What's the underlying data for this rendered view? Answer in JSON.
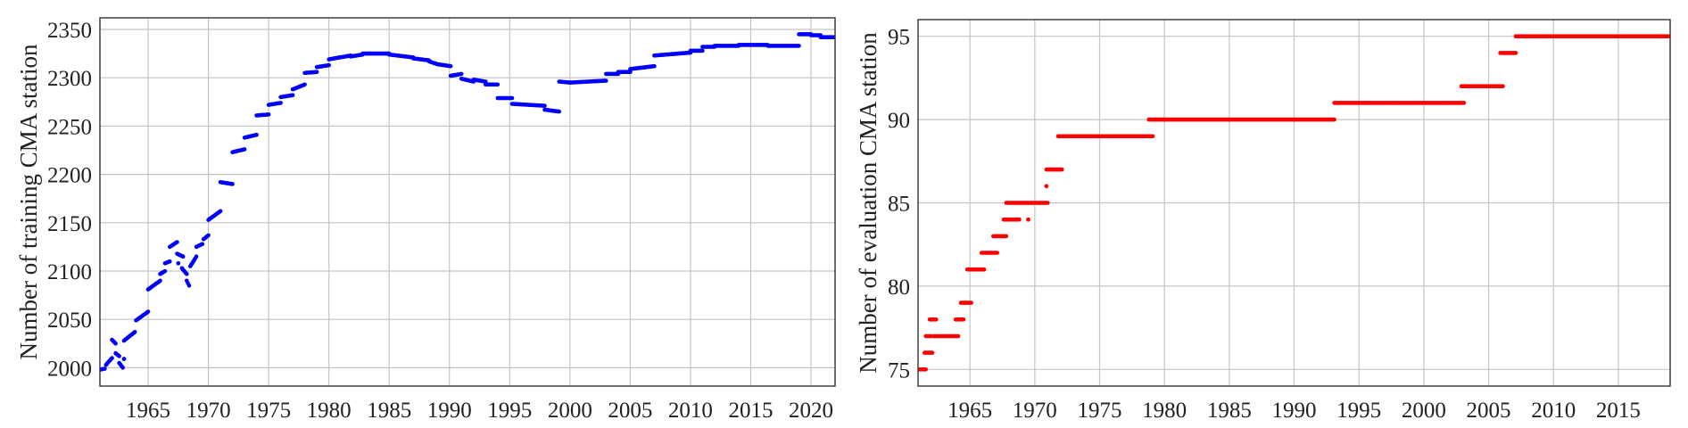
{
  "chart_data": [
    {
      "type": "scatter",
      "ylabel": "Number of training CMA station",
      "xlabel": "",
      "xlim": [
        1961,
        2022
      ],
      "ylim": [
        1981,
        2362
      ],
      "xticks": [
        "1965",
        "1970",
        "1975",
        "1980",
        "1985",
        "1990",
        "1995",
        "2000",
        "2005",
        "2010",
        "2015",
        "2020"
      ],
      "yticks": [
        "2000",
        "2050",
        "2100",
        "2150",
        "2200",
        "2250",
        "2300",
        "2350"
      ],
      "grid": true,
      "color": "#0000ff",
      "segments": [
        [
          1961.0,
          1961.4,
          1998,
          1999
        ],
        [
          1961.5,
          1962.0,
          2003,
          2010
        ],
        [
          1962.0,
          1962.3,
          2029,
          2025
        ],
        [
          1962.3,
          1962.6,
          2015,
          2012
        ],
        [
          1962.6,
          1962.9,
          2005,
          2000
        ],
        [
          1963.0,
          1963.0,
          2009,
          2009
        ],
        [
          1963.0,
          1963.9,
          2028,
          2037
        ],
        [
          1964.0,
          1965.0,
          2049,
          2058
        ],
        [
          1965.0,
          1966.0,
          2081,
          2090
        ],
        [
          1966.0,
          1966.4,
          2097,
          2100
        ],
        [
          1966.4,
          1966.8,
          2108,
          2110
        ],
        [
          1966.8,
          1967.4,
          2125,
          2130
        ],
        [
          1967.4,
          1967.9,
          2118,
          2115
        ],
        [
          1967.5,
          1967.5,
          2108,
          2108
        ],
        [
          1967.8,
          1968.2,
          2103,
          2097
        ],
        [
          1968.2,
          1968.4,
          2090,
          2085
        ],
        [
          1968.5,
          1969.0,
          2105,
          2115
        ],
        [
          1969.0,
          1969.5,
          2125,
          2128
        ],
        [
          1969.6,
          1970.0,
          2133,
          2137
        ],
        [
          1970.0,
          1971.0,
          2153,
          2162
        ],
        [
          1971.0,
          1972.0,
          2192,
          2190
        ],
        [
          1972.0,
          1973.0,
          2223,
          2226
        ],
        [
          1973.0,
          1974.0,
          2238,
          2241
        ],
        [
          1974.0,
          1975.0,
          2261,
          2262
        ],
        [
          1975.0,
          1976.0,
          2272,
          2274
        ],
        [
          1976.0,
          1977.0,
          2280,
          2282
        ],
        [
          1977.0,
          1978.0,
          2288,
          2293
        ],
        [
          1978.0,
          1979.0,
          2305,
          2306
        ],
        [
          1979.0,
          1980.0,
          2311,
          2313
        ],
        [
          1980.0,
          1981.8,
          2319,
          2323
        ],
        [
          1981.8,
          1982.8,
          2322,
          2324
        ],
        [
          1982.8,
          1985.0,
          2325,
          2325
        ],
        [
          1985.0,
          1987.0,
          2324,
          2321
        ],
        [
          1987.0,
          1988.3,
          2320,
          2318
        ],
        [
          1988.3,
          1989.0,
          2317,
          2314
        ],
        [
          1989.0,
          1990.1,
          2314,
          2312
        ],
        [
          1990.1,
          1991.0,
          2302,
          2304
        ],
        [
          1991.0,
          1992.0,
          2299,
          2296
        ],
        [
          1992.0,
          1993.0,
          2298,
          2296
        ],
        [
          1993.0,
          1994.0,
          2293,
          2293
        ],
        [
          1994.0,
          1995.2,
          2279,
          2279
        ],
        [
          1995.2,
          1997.9,
          2273,
          2271
        ],
        [
          1997.9,
          1999.1,
          2267,
          2265
        ],
        [
          1999.1,
          2000.0,
          2296,
          2295
        ],
        [
          2000.0,
          2003.0,
          2295,
          2297
        ],
        [
          2003.0,
          2004.0,
          2304,
          2304
        ],
        [
          2004.0,
          2005.0,
          2306,
          2306
        ],
        [
          2005.0,
          2007.0,
          2309,
          2312
        ],
        [
          2007.0,
          2010.0,
          2323,
          2326
        ],
        [
          2010.0,
          2011.0,
          2328,
          2328
        ],
        [
          2011.0,
          2012.0,
          2332,
          2332
        ],
        [
          2012.0,
          2014.0,
          2333,
          2333
        ],
        [
          2014.0,
          2016.4,
          2334,
          2334
        ],
        [
          2016.4,
          2019.0,
          2333,
          2333
        ],
        [
          2019.0,
          2020.0,
          2345,
          2345
        ],
        [
          2020.0,
          2020.8,
          2344,
          2344
        ],
        [
          2020.8,
          2022.0,
          2342,
          2342
        ]
      ]
    },
    {
      "type": "scatter",
      "ylabel": "Number of evaluation CMA station",
      "xlabel": "",
      "xlim": [
        1961,
        2019
      ],
      "ylim": [
        74,
        96
      ],
      "xticks": [
        "1965",
        "1970",
        "1975",
        "1980",
        "1985",
        "1990",
        "1995",
        "2000",
        "2005",
        "2010",
        "2015"
      ],
      "yticks": [
        "75",
        "80",
        "85",
        "90",
        "95"
      ],
      "grid": true,
      "color": "#ff0000",
      "segments": [
        [
          1961.0,
          1961.6,
          75,
          75
        ],
        [
          1961.5,
          1962.1,
          76,
          76
        ],
        [
          1961.6,
          1962.0,
          77,
          77
        ],
        [
          1962.2,
          1964.1,
          77,
          77
        ],
        [
          1961.9,
          1962.4,
          78,
          78
        ],
        [
          1963.9,
          1964.5,
          78,
          78
        ],
        [
          1964.3,
          1965.1,
          79,
          79
        ],
        [
          1964.8,
          1966.1,
          81,
          81
        ],
        [
          1965.9,
          1967.1,
          82,
          82
        ],
        [
          1966.8,
          1967.8,
          83,
          83
        ],
        [
          1967.6,
          1968.8,
          84,
          84
        ],
        [
          1969.5,
          1969.5,
          84,
          84
        ],
        [
          1967.8,
          1971.0,
          85,
          85
        ],
        [
          1970.9,
          1970.9,
          86,
          86
        ],
        [
          1970.9,
          1972.1,
          87,
          87
        ],
        [
          1971.8,
          1979.1,
          89,
          89
        ],
        [
          1978.8,
          1993.1,
          90,
          90
        ],
        [
          1993.1,
          2003.1,
          91,
          91
        ],
        [
          2002.9,
          2006.1,
          92,
          92
        ],
        [
          2005.9,
          2007.1,
          94,
          94
        ],
        [
          2007.1,
          2019.0,
          95,
          95
        ]
      ]
    }
  ]
}
